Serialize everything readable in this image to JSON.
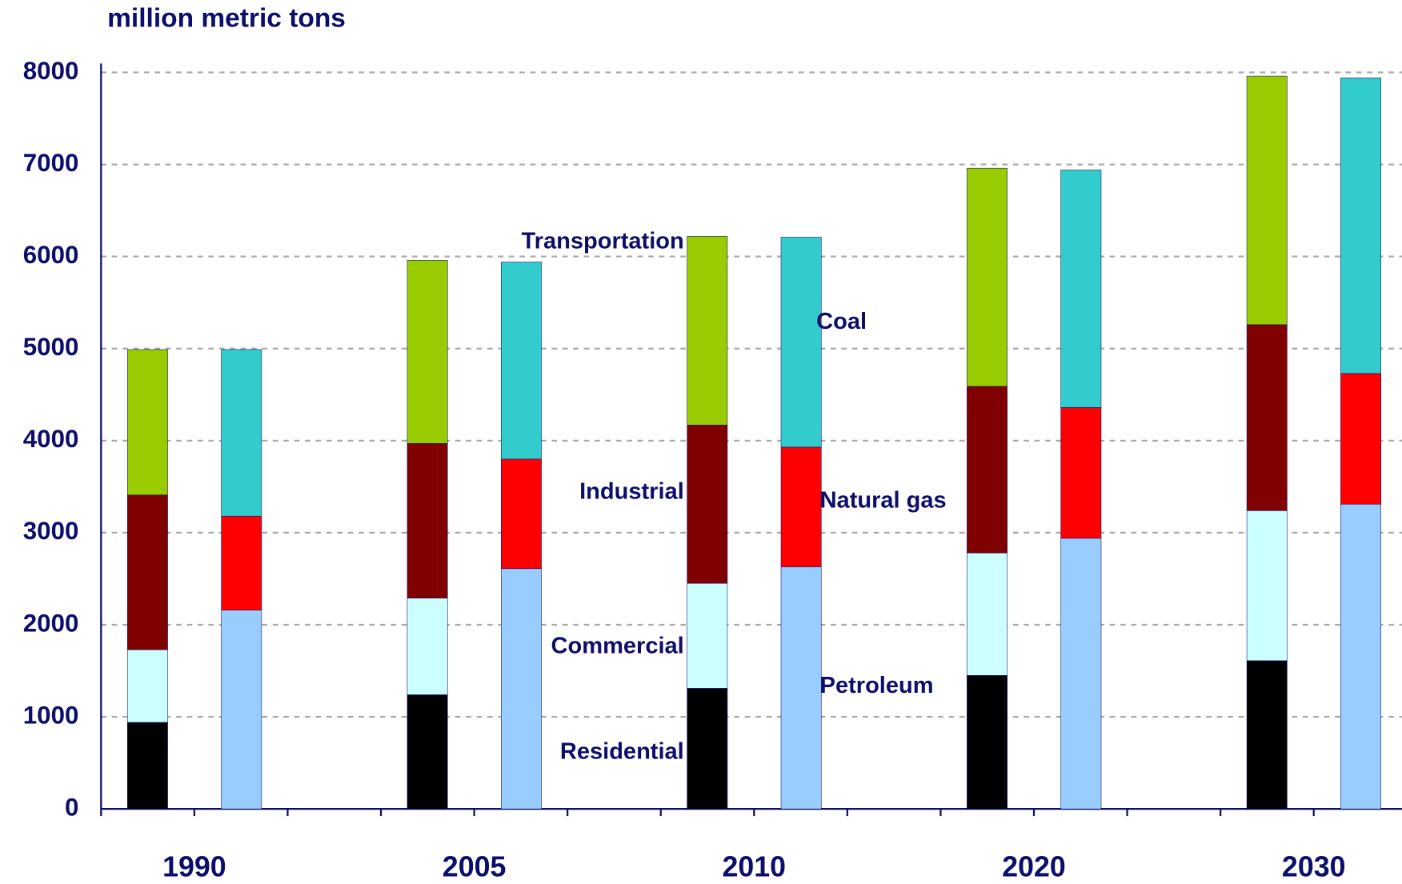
{
  "chart_data": {
    "type": "bar",
    "stacked": true,
    "ylabel": "million metric tons",
    "categories": [
      "1990",
      "2005",
      "2010",
      "2020",
      "2030"
    ],
    "ylim": [
      0,
      8000
    ],
    "yticks": [
      0,
      1000,
      2000,
      3000,
      4000,
      5000,
      6000,
      7000,
      8000
    ],
    "grid": true,
    "series": [
      {
        "name": "Residential",
        "color": "#000000",
        "stack": 0,
        "values": [
          940,
          1240,
          1310,
          1450,
          1610
        ]
      },
      {
        "name": "Commercial",
        "color": "#ccffff",
        "stack": 0,
        "values": [
          790,
          1050,
          1140,
          1330,
          1630
        ]
      },
      {
        "name": "Industrial",
        "color": "#800000",
        "stack": 0,
        "values": [
          1680,
          1680,
          1720,
          1810,
          2020
        ]
      },
      {
        "name": "Transportation",
        "color": "#99cc00",
        "stack": 0,
        "values": [
          1580,
          1990,
          2050,
          2370,
          2700
        ]
      },
      {
        "name": "Petroleum",
        "color": "#99ccff",
        "stack": 1,
        "values": [
          2160,
          2610,
          2630,
          2940,
          3310
        ]
      },
      {
        "name": "Natural gas",
        "color": "#ff0000",
        "stack": 1,
        "values": [
          1020,
          1190,
          1300,
          1420,
          1420
        ]
      },
      {
        "name": "Coal",
        "color": "#33cccc",
        "stack": 1,
        "values": [
          1810,
          2140,
          2280,
          2580,
          3210
        ]
      }
    ]
  }
}
